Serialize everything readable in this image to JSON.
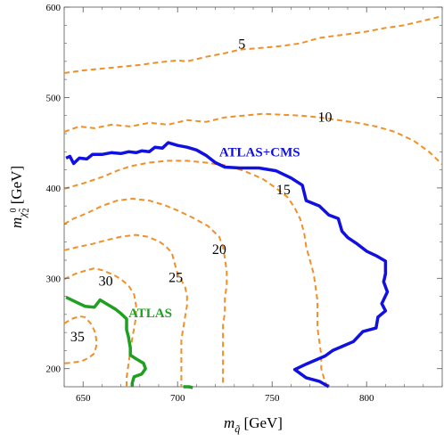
{
  "chart_data": {
    "type": "line",
    "xlim": [
      640,
      840
    ],
    "ylim": [
      180,
      600
    ],
    "x_ticks": [
      650,
      700,
      750,
      800
    ],
    "y_ticks": [
      200,
      300,
      400,
      500,
      600
    ],
    "x_tick_labels": [
      "650",
      "700",
      "750",
      "800"
    ],
    "y_tick_labels": [
      "200",
      "300",
      "400",
      "500",
      "600"
    ],
    "xlabel": {
      "main": "m",
      "sub": "q̃",
      "unit": " [GeV]"
    },
    "ylabel": {
      "main": "m",
      "sub": "χ̃",
      "sup": "0",
      "sub2": "2",
      "unit": " [GeV]"
    },
    "grid": false,
    "colors": {
      "contour": "#f0902a",
      "atlas_cms": "#1010e0",
      "atlas": "#20a020"
    },
    "contours": [
      {
        "label": "5",
        "label_pos": [
          734,
          560
        ],
        "points": [
          [
            640,
            527
          ],
          [
            650,
            530
          ],
          [
            665,
            533
          ],
          [
            680,
            536
          ],
          [
            690,
            539
          ],
          [
            700,
            541
          ],
          [
            705,
            540
          ],
          [
            715,
            545
          ],
          [
            725,
            549
          ],
          [
            733,
            553
          ],
          [
            745,
            555
          ],
          [
            755,
            557
          ],
          [
            765,
            560
          ],
          [
            775,
            566
          ],
          [
            790,
            570
          ],
          [
            800,
            573
          ],
          [
            810,
            577
          ],
          [
            820,
            580
          ],
          [
            830,
            585
          ],
          [
            840,
            590
          ]
        ]
      },
      {
        "label": "10",
        "label_pos": [
          778,
          479
        ],
        "points": [
          [
            640,
            462
          ],
          [
            648,
            468
          ],
          [
            656,
            466
          ],
          [
            665,
            470
          ],
          [
            675,
            468
          ],
          [
            685,
            472
          ],
          [
            695,
            470
          ],
          [
            705,
            475
          ],
          [
            715,
            473
          ],
          [
            725,
            478
          ],
          [
            735,
            480
          ],
          [
            745,
            482
          ],
          [
            755,
            481
          ],
          [
            765,
            480
          ],
          [
            775,
            478
          ],
          [
            785,
            475
          ],
          [
            795,
            472
          ],
          [
            805,
            468
          ],
          [
            815,
            462
          ],
          [
            825,
            452
          ],
          [
            833,
            440
          ],
          [
            840,
            426
          ]
        ]
      },
      {
        "label": "15",
        "label_pos": [
          756,
          399
        ],
        "points": [
          [
            640,
            399
          ],
          [
            650,
            405
          ],
          [
            660,
            412
          ],
          [
            668,
            419
          ],
          [
            675,
            424
          ],
          [
            685,
            428
          ],
          [
            695,
            430
          ],
          [
            705,
            430
          ],
          [
            715,
            428
          ],
          [
            725,
            425
          ],
          [
            735,
            419
          ],
          [
            745,
            410
          ],
          [
            752,
            400
          ],
          [
            758,
            390
          ],
          [
            762,
            378
          ],
          [
            765,
            365
          ],
          [
            767,
            350
          ],
          [
            768,
            335
          ],
          [
            770,
            320
          ],
          [
            772,
            305
          ],
          [
            773,
            290
          ],
          [
            774,
            275
          ],
          [
            774,
            260
          ],
          [
            774,
            245
          ],
          [
            775,
            230
          ],
          [
            776,
            215
          ],
          [
            776,
            200
          ],
          [
            778,
            185
          ],
          [
            780,
            180
          ]
        ]
      },
      {
        "label": "20",
        "label_pos": [
          722,
          333
        ],
        "points": [
          [
            640,
            360
          ],
          [
            645,
            366
          ],
          [
            652,
            372
          ],
          [
            660,
            380
          ],
          [
            668,
            386
          ],
          [
            676,
            388
          ],
          [
            685,
            386
          ],
          [
            693,
            381
          ],
          [
            700,
            375
          ],
          [
            708,
            367
          ],
          [
            716,
            358
          ],
          [
            722,
            346
          ],
          [
            724,
            335
          ],
          [
            725,
            322
          ],
          [
            726,
            308
          ],
          [
            726,
            292
          ],
          [
            725,
            278
          ],
          [
            725,
            262
          ],
          [
            724,
            248
          ],
          [
            724,
            232
          ],
          [
            724,
            218
          ],
          [
            724,
            205
          ],
          [
            724,
            190
          ],
          [
            724,
            180
          ]
        ]
      },
      {
        "label": "25",
        "label_pos": [
          699,
          302
        ],
        "points": [
          [
            640,
            331
          ],
          [
            648,
            335
          ],
          [
            655,
            338
          ],
          [
            662,
            342
          ],
          [
            670,
            346
          ],
          [
            678,
            348
          ],
          [
            684,
            346
          ],
          [
            690,
            341
          ],
          [
            694,
            335
          ],
          [
            697,
            328
          ],
          [
            698,
            320
          ],
          [
            699,
            312
          ],
          [
            700,
            305
          ],
          [
            702,
            298
          ],
          [
            704,
            290
          ],
          [
            705,
            280
          ],
          [
            705,
            270
          ],
          [
            704,
            258
          ],
          [
            703,
            245
          ],
          [
            702,
            232
          ],
          [
            702,
            218
          ],
          [
            702,
            205
          ],
          [
            702,
            190
          ],
          [
            702,
            180
          ]
        ]
      },
      {
        "label": "30",
        "label_pos": [
          662,
          298
        ],
        "points": [
          [
            640,
            299
          ],
          [
            646,
            305
          ],
          [
            652,
            309
          ],
          [
            656,
            311
          ],
          [
            660,
            309
          ],
          [
            666,
            304
          ],
          [
            670,
            299
          ],
          [
            674,
            292
          ],
          [
            677,
            282
          ],
          [
            678,
            270
          ],
          [
            678,
            257
          ],
          [
            677,
            245
          ],
          [
            676,
            233
          ],
          [
            675,
            220
          ],
          [
            674,
            205
          ],
          [
            673,
            190
          ],
          [
            673,
            180
          ]
        ]
      },
      {
        "label": "35",
        "label_pos": [
          647,
          236
        ],
        "points": [
          [
            640,
            250
          ],
          [
            644,
            255
          ],
          [
            648,
            258
          ],
          [
            651,
            257
          ],
          [
            654,
            250
          ],
          [
            656,
            242
          ],
          [
            657,
            233
          ],
          [
            657,
            225
          ],
          [
            656,
            217
          ],
          [
            653,
            212
          ],
          [
            649,
            208
          ],
          [
            645,
            207
          ],
          [
            641,
            206
          ],
          [
            640,
            206
          ]
        ]
      }
    ],
    "series": [
      {
        "name": "ATLAS+CMS",
        "label_pos": [
          722,
          440
        ],
        "points": [
          [
            641,
            433
          ],
          [
            643,
            435
          ],
          [
            645,
            427
          ],
          [
            648,
            433
          ],
          [
            652,
            432
          ],
          [
            655,
            437
          ],
          [
            660,
            437
          ],
          [
            665,
            439
          ],
          [
            670,
            438
          ],
          [
            674,
            440
          ],
          [
            678,
            439
          ],
          [
            681,
            441
          ],
          [
            685,
            440
          ],
          [
            688,
            445
          ],
          [
            692,
            444
          ],
          [
            695,
            450
          ],
          [
            700,
            447
          ],
          [
            705,
            445
          ],
          [
            710,
            442
          ],
          [
            715,
            436
          ],
          [
            720,
            428
          ],
          [
            725,
            423
          ],
          [
            733,
            422
          ],
          [
            743,
            422
          ],
          [
            752,
            419
          ],
          [
            760,
            411
          ],
          [
            766,
            403
          ],
          [
            768,
            386
          ],
          [
            775,
            380
          ],
          [
            780,
            370
          ],
          [
            785,
            366
          ],
          [
            787,
            352
          ],
          [
            790,
            345
          ],
          [
            795,
            338
          ],
          [
            800,
            330
          ],
          [
            805,
            325
          ],
          [
            810,
            319
          ],
          [
            810,
            305
          ],
          [
            809,
            296
          ],
          [
            811,
            285
          ],
          [
            808,
            272
          ],
          [
            810,
            264
          ],
          [
            806,
            257
          ],
          [
            805,
            245
          ],
          [
            798,
            241
          ],
          [
            793,
            230
          ],
          [
            782,
            220
          ],
          [
            778,
            214
          ],
          [
            768,
            205
          ],
          [
            762,
            199
          ],
          [
            768,
            190
          ],
          [
            775,
            186
          ],
          [
            780,
            180
          ]
        ]
      },
      {
        "name": "ATLAS",
        "label_pos": [
          674,
          262
        ],
        "points": [
          [
            641,
            279
          ],
          [
            646,
            274
          ],
          [
            651,
            269
          ],
          [
            656,
            268
          ],
          [
            659,
            276
          ],
          [
            663,
            271
          ],
          [
            667,
            266
          ],
          [
            670,
            261
          ],
          [
            673,
            255
          ],
          [
            673,
            243
          ],
          [
            674,
            235
          ],
          [
            675,
            223
          ],
          [
            675,
            215
          ],
          [
            678,
            211
          ],
          [
            682,
            206
          ],
          [
            683,
            200
          ],
          [
            681,
            194
          ],
          [
            677,
            191
          ],
          [
            676,
            184
          ],
          [
            676,
            180
          ]
        ],
        "extra_segment": [
          [
            703,
            180
          ],
          [
            706,
            180
          ],
          [
            708,
            179
          ]
        ]
      }
    ]
  }
}
